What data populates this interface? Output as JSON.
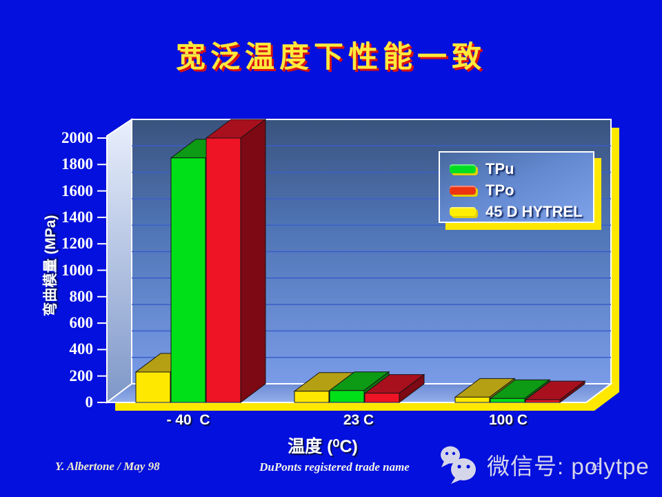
{
  "title": "宽泛温度下性能一致",
  "chart_data": {
    "type": "bar",
    "title": "宽泛温度下性能一致",
    "xlabel": "温度 (⁰C)",
    "ylabel": "弯曲模量 (MPa)",
    "categories": [
      "- 40  C",
      "23 C",
      "100 C"
    ],
    "series": [
      {
        "name": "45 D HYTREL",
        "front": "#ffe800",
        "top": "#b5a014",
        "side": "#8f7d0e",
        "values": [
          230,
          85,
          40
        ]
      },
      {
        "name": "TPu",
        "front": "#00e018",
        "top": "#0d9a14",
        "side": "#0a7a10",
        "values": [
          1850,
          90,
          30
        ]
      },
      {
        "name": "TPo",
        "front": "#ee1425",
        "top": "#a8101e",
        "side": "#7c0913",
        "values": [
          2000,
          70,
          20
        ]
      }
    ],
    "ylim": [
      0,
      2000
    ],
    "ytick_step": 200,
    "yticks": [
      "2000",
      "1800",
      "1600",
      "1400",
      "1200",
      "1000",
      "800",
      "600",
      "400",
      "200",
      "0"
    ],
    "grid": true,
    "legend": {
      "position": "top-right",
      "items": [
        {
          "label": "TPu",
          "color": "#00dd22"
        },
        {
          "label": "TPo",
          "color": "#ee3311"
        },
        {
          "label": "45 D HYTREL",
          "color": "#ffee00"
        }
      ]
    }
  },
  "colors": {
    "background": "#0410dd",
    "title_text": "#ffe93c",
    "title_shadow": "#d81212",
    "plot_shadow": "#ffe800",
    "wall_top": "#3a537e",
    "wall_bottom": "#7a9ce8",
    "gridline": "#3a5ec6"
  },
  "footer": {
    "author": "Y. Albertone / May 98",
    "trademark": "DuPonts registered trade name",
    "page_number": "15"
  },
  "watermark": {
    "icon": "wechat-icon",
    "label": "微信号: polytpe"
  }
}
